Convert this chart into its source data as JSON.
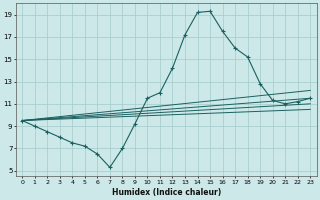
{
  "xlabel": "Humidex (Indice chaleur)",
  "xlim": [
    -0.5,
    23.5
  ],
  "ylim": [
    4.5,
    20
  ],
  "yticks": [
    5,
    7,
    9,
    11,
    13,
    15,
    17,
    19
  ],
  "xticks": [
    0,
    1,
    2,
    3,
    4,
    5,
    6,
    7,
    8,
    9,
    10,
    11,
    12,
    13,
    14,
    15,
    16,
    17,
    18,
    19,
    20,
    21,
    22,
    23
  ],
  "bg_color": "#cde8e8",
  "grid_color": "#aacece",
  "line_color": "#1a6060",
  "main_x": [
    0,
    1,
    2,
    3,
    4,
    5,
    6,
    7,
    8,
    9,
    10,
    11,
    12,
    13,
    14,
    15,
    16,
    17,
    18,
    19,
    20,
    21,
    22,
    23
  ],
  "main_y": [
    9.5,
    9.0,
    8.5,
    8.0,
    7.5,
    7.2,
    6.5,
    5.3,
    7.0,
    9.2,
    11.5,
    12.0,
    14.2,
    17.2,
    19.2,
    19.3,
    17.5,
    16.0,
    15.2,
    12.8,
    11.3,
    11.0,
    11.2,
    11.5
  ],
  "straight_lines": [
    {
      "x": [
        0,
        23
      ],
      "y": [
        9.5,
        12.2
      ]
    },
    {
      "x": [
        0,
        23
      ],
      "y": [
        9.5,
        11.5
      ]
    },
    {
      "x": [
        0,
        23
      ],
      "y": [
        9.5,
        11.0
      ]
    },
    {
      "x": [
        0,
        23
      ],
      "y": [
        9.5,
        10.5
      ]
    }
  ]
}
